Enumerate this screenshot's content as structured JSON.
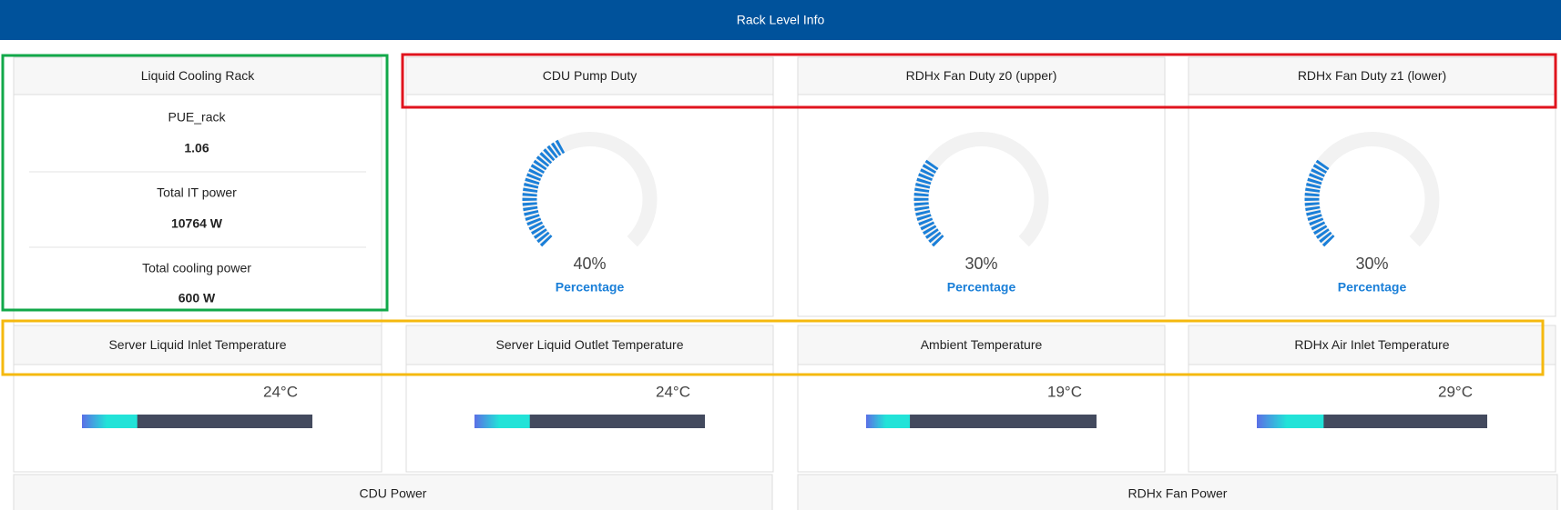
{
  "header": {
    "title": "Rack Level Info"
  },
  "rack": {
    "title": "Liquid Cooling Rack",
    "items": [
      {
        "label": "PUE_rack",
        "value": "1.06"
      },
      {
        "label": "Total IT power",
        "value": "10764 W"
      },
      {
        "label": "Total cooling power",
        "value": "600 W"
      }
    ]
  },
  "gauges": [
    {
      "title": "CDU Pump Duty",
      "value": 40,
      "value_label": "40%",
      "unit": "Percentage",
      "range": [
        0,
        100
      ],
      "color": "#1a7fd8"
    },
    {
      "title": "RDHx Fan Duty z0 (upper)",
      "value": 30,
      "value_label": "30%",
      "unit": "Percentage",
      "range": [
        0,
        100
      ],
      "color": "#1a7fd8"
    },
    {
      "title": "RDHx Fan Duty z1 (lower)",
      "value": 30,
      "value_label": "30%",
      "unit": "Percentage",
      "range": [
        0,
        100
      ],
      "color": "#1a7fd8"
    }
  ],
  "temperatures": [
    {
      "title": "Server Liquid Inlet Temperature",
      "value": 24,
      "value_label": "24°C",
      "range": [
        0,
        100
      ]
    },
    {
      "title": "Server Liquid Outlet Temperature",
      "value": 24,
      "value_label": "24°C",
      "range": [
        0,
        100
      ]
    },
    {
      "title": "Ambient Temperature",
      "value": 19,
      "value_label": "19°C",
      "range": [
        0,
        100
      ]
    },
    {
      "title": "RDHx Air Inlet Temperature",
      "value": 29,
      "value_label": "29°C",
      "range": [
        0,
        100
      ]
    }
  ],
  "bottom_panels": [
    {
      "title": "CDU Power"
    },
    {
      "title": "RDHx Fan Power"
    }
  ]
}
